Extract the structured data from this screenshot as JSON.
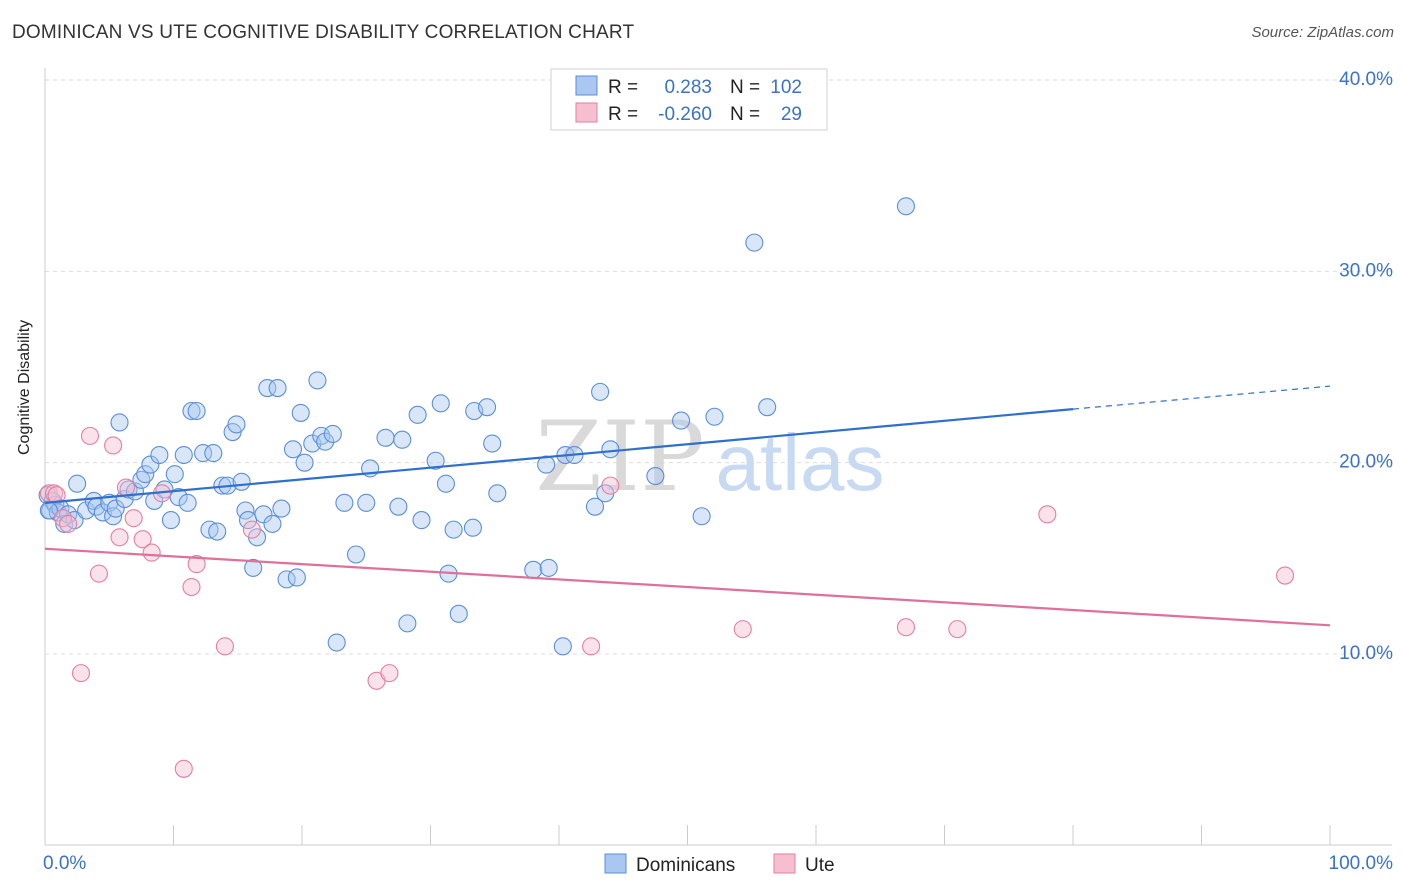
{
  "title": "DOMINICAN VS UTE COGNITIVE DISABILITY CORRELATION CHART",
  "source": "Source: ZipAtlas.com",
  "watermark": {
    "zip": "ZIP",
    "atlas": "atlas"
  },
  "colors": {
    "blue": "#5b8fd9",
    "blue_fill": "#a9c7f0",
    "blue_line": "#2f6fcf",
    "pink": "#e57fa1",
    "pink_fill": "#f5bfd0",
    "pink_line": "#e0709a",
    "axis_text": "#3a72c8",
    "grid": "#dddddd"
  },
  "legend": {
    "rows": [
      {
        "r_label": "R =",
        "r_value": "0.283",
        "n_label": "N =",
        "n_value": "102",
        "series": "blue"
      },
      {
        "r_label": "R =",
        "r_value": "-0.260",
        "n_label": "N =",
        "n_value": "29",
        "series": "pink"
      }
    ],
    "bottom": [
      {
        "label": "Dominicans",
        "series": "blue"
      },
      {
        "label": "Ute",
        "series": "pink"
      }
    ]
  },
  "chart_data": {
    "type": "scatter",
    "title": "DOMINICAN VS UTE COGNITIVE DISABILITY CORRELATION CHART",
    "xlabel": "",
    "ylabel": "Cognitive Disability",
    "xlim": [
      0,
      100
    ],
    "ylim": [
      0,
      40
    ],
    "x_tick_labels": [
      "0.0%",
      "100.0%"
    ],
    "y_ticks": [
      10,
      20,
      30,
      40
    ],
    "y_tick_labels": [
      "10.0%",
      "20.0%",
      "30.0%",
      "40.0%"
    ],
    "series": [
      {
        "name": "Dominicans",
        "color": "blue",
        "R": 0.283,
        "N": 102,
        "trend": {
          "x0": 0,
          "y0": 17.9,
          "x1": 80,
          "y1": 22.8,
          "dash_to_x": 100,
          "dash_to_y": 24.0
        },
        "points": [
          [
            0.2,
            18.3
          ],
          [
            0.4,
            17.5
          ],
          [
            0.6,
            18.0
          ],
          [
            0.8,
            17.8
          ],
          [
            1.0,
            17.4
          ],
          [
            1.2,
            17.6
          ],
          [
            1.5,
            16.8
          ],
          [
            1.8,
            17.3
          ],
          [
            2.3,
            17.0
          ],
          [
            2.5,
            18.9
          ],
          [
            3.2,
            17.5
          ],
          [
            3.8,
            18.0
          ],
          [
            4.0,
            17.7
          ],
          [
            4.5,
            17.4
          ],
          [
            5.0,
            17.9
          ],
          [
            5.3,
            17.2
          ],
          [
            5.5,
            17.6
          ],
          [
            5.8,
            22.1
          ],
          [
            6.2,
            18.1
          ],
          [
            6.5,
            18.6
          ],
          [
            7.0,
            18.5
          ],
          [
            7.5,
            19.1
          ],
          [
            7.8,
            19.4
          ],
          [
            8.2,
            19.9
          ],
          [
            8.5,
            18.0
          ],
          [
            8.9,
            20.4
          ],
          [
            9.3,
            18.6
          ],
          [
            9.8,
            17.0
          ],
          [
            10.1,
            19.4
          ],
          [
            10.4,
            18.2
          ],
          [
            10.8,
            20.4
          ],
          [
            11.1,
            17.9
          ],
          [
            11.4,
            22.7
          ],
          [
            11.8,
            22.7
          ],
          [
            12.3,
            20.5
          ],
          [
            12.8,
            16.5
          ],
          [
            13.1,
            20.5
          ],
          [
            13.4,
            16.4
          ],
          [
            13.8,
            18.8
          ],
          [
            14.2,
            18.8
          ],
          [
            14.6,
            21.6
          ],
          [
            14.9,
            22.0
          ],
          [
            15.3,
            19.0
          ],
          [
            15.6,
            17.5
          ],
          [
            15.8,
            17.0
          ],
          [
            16.2,
            14.5
          ],
          [
            16.5,
            16.1
          ],
          [
            17.0,
            17.3
          ],
          [
            17.3,
            23.9
          ],
          [
            17.7,
            16.8
          ],
          [
            18.1,
            23.9
          ],
          [
            18.4,
            17.6
          ],
          [
            18.8,
            13.9
          ],
          [
            19.3,
            20.7
          ],
          [
            19.6,
            14.0
          ],
          [
            19.9,
            22.6
          ],
          [
            20.2,
            20.0
          ],
          [
            20.8,
            21.0
          ],
          [
            21.2,
            24.3
          ],
          [
            21.5,
            21.4
          ],
          [
            21.8,
            21.1
          ],
          [
            22.4,
            21.5
          ],
          [
            22.7,
            10.6
          ],
          [
            23.3,
            17.9
          ],
          [
            24.2,
            15.2
          ],
          [
            25.0,
            17.9
          ],
          [
            25.3,
            19.7
          ],
          [
            26.5,
            21.3
          ],
          [
            27.5,
            17.7
          ],
          [
            27.8,
            21.2
          ],
          [
            28.2,
            11.6
          ],
          [
            29.0,
            22.5
          ],
          [
            29.3,
            17.0
          ],
          [
            30.4,
            20.1
          ],
          [
            30.8,
            23.1
          ],
          [
            31.2,
            18.9
          ],
          [
            31.4,
            14.2
          ],
          [
            31.8,
            16.5
          ],
          [
            32.2,
            12.1
          ],
          [
            33.3,
            16.6
          ],
          [
            33.4,
            22.7
          ],
          [
            34.4,
            22.9
          ],
          [
            34.8,
            21.0
          ],
          [
            35.2,
            18.4
          ],
          [
            38.0,
            14.4
          ],
          [
            39.0,
            19.9
          ],
          [
            39.2,
            14.5
          ],
          [
            40.3,
            10.4
          ],
          [
            40.5,
            20.4
          ],
          [
            41.2,
            20.4
          ],
          [
            42.8,
            17.7
          ],
          [
            43.2,
            23.7
          ],
          [
            43.6,
            18.4
          ],
          [
            44.0,
            20.7
          ],
          [
            47.5,
            19.3
          ],
          [
            49.5,
            22.2
          ],
          [
            51.1,
            17.2
          ],
          [
            52.1,
            22.4
          ],
          [
            55.2,
            31.5
          ],
          [
            56.2,
            22.9
          ],
          [
            67.0,
            33.4
          ],
          [
            0.3,
            17.5
          ]
        ]
      },
      {
        "name": "Ute",
        "color": "pink",
        "R": -0.26,
        "N": 29,
        "trend": {
          "x0": 0,
          "y0": 15.5,
          "x1": 100,
          "y1": 11.5
        },
        "points": [
          [
            0.3,
            18.4
          ],
          [
            0.7,
            18.4
          ],
          [
            1.4,
            17.1
          ],
          [
            1.8,
            16.8
          ],
          [
            2.8,
            9.0
          ],
          [
            3.5,
            21.4
          ],
          [
            4.2,
            14.2
          ],
          [
            5.3,
            20.9
          ],
          [
            5.8,
            16.1
          ],
          [
            6.3,
            18.7
          ],
          [
            6.9,
            17.1
          ],
          [
            7.6,
            16.0
          ],
          [
            8.3,
            15.3
          ],
          [
            9.1,
            18.4
          ],
          [
            10.8,
            4.0
          ],
          [
            11.4,
            13.5
          ],
          [
            11.8,
            14.7
          ],
          [
            14.0,
            10.4
          ],
          [
            16.1,
            16.5
          ],
          [
            25.8,
            8.6
          ],
          [
            26.8,
            9.0
          ],
          [
            42.5,
            10.4
          ],
          [
            44.0,
            18.8
          ],
          [
            54.3,
            11.3
          ],
          [
            67.0,
            11.4
          ],
          [
            71.0,
            11.3
          ],
          [
            78.0,
            17.3
          ],
          [
            96.5,
            14.1
          ],
          [
            0.9,
            18.3
          ]
        ]
      }
    ]
  }
}
